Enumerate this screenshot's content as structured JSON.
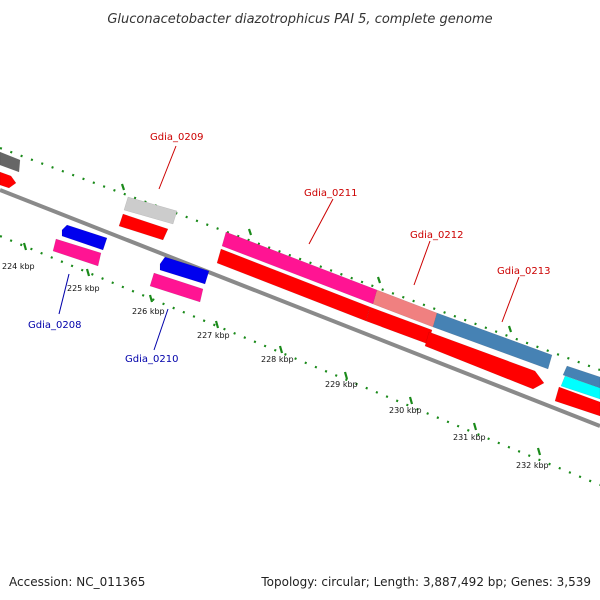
{
  "title": "Gluconacetobacter diazotrophicus PAI 5, complete genome",
  "footer": {
    "accession": "Accession: NC_011365",
    "summary": "Topology: circular; Length: 3,887,492 bp; Genes: 3,539"
  },
  "ticks": [
    "224 kbp",
    "225 kbp",
    "226 kbp",
    "227 kbp",
    "228 kbp",
    "229 kbp",
    "230 kbp",
    "231 kbp",
    "232 kbp"
  ],
  "genes": {
    "gdia_0208": "Gdia_0208",
    "gdia_0209": "Gdia_0209",
    "gdia_0210": "Gdia_0210",
    "gdia_0211": "Gdia_0211",
    "gdia_0212": "Gdia_0212",
    "gdia_0213": "Gdia_0213"
  },
  "colors": {
    "backbone": "#8a8a8a",
    "tick": "#1a8a1a",
    "cds": "#ff0000",
    "gene_pink": "#ff1493",
    "gene_blue": "#0000ee",
    "gene_gray": "#cccccc",
    "gene_dark": "#666666",
    "gene_salmon": "#f08080",
    "gene_steel": "#4682b4",
    "gene_cyan": "#00ffff",
    "label_red": "#cc0000",
    "label_blue": "#0000aa"
  }
}
